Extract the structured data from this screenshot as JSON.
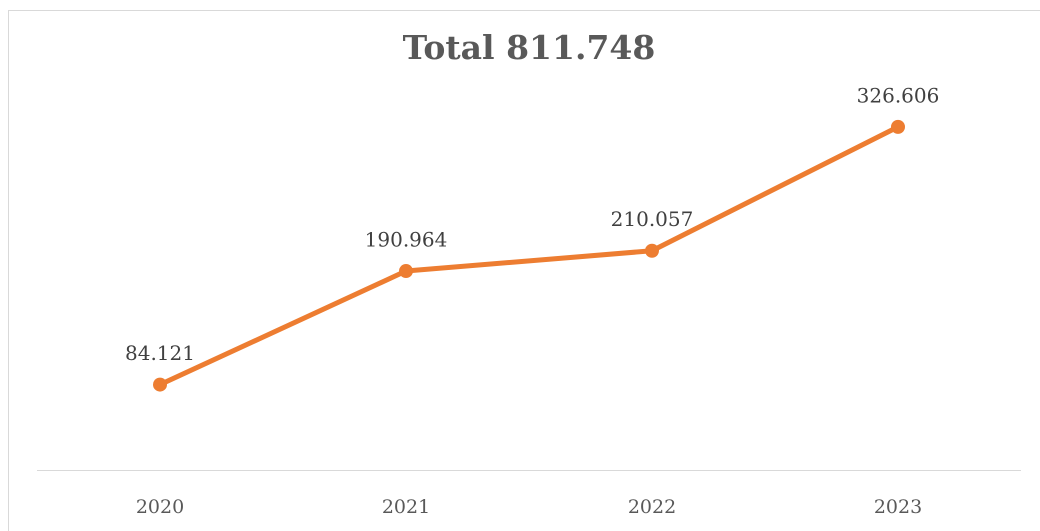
{
  "chart_data": {
    "type": "line",
    "title": "Total 811.748",
    "categories": [
      "2020",
      "2021",
      "2022",
      "2023"
    ],
    "values": [
      84121,
      190964,
      210057,
      326606
    ],
    "value_labels": [
      "84.121",
      "190.964",
      "210.057",
      "326.606"
    ],
    "color": "#ED7D31",
    "ylim": [
      0,
      350000
    ]
  }
}
